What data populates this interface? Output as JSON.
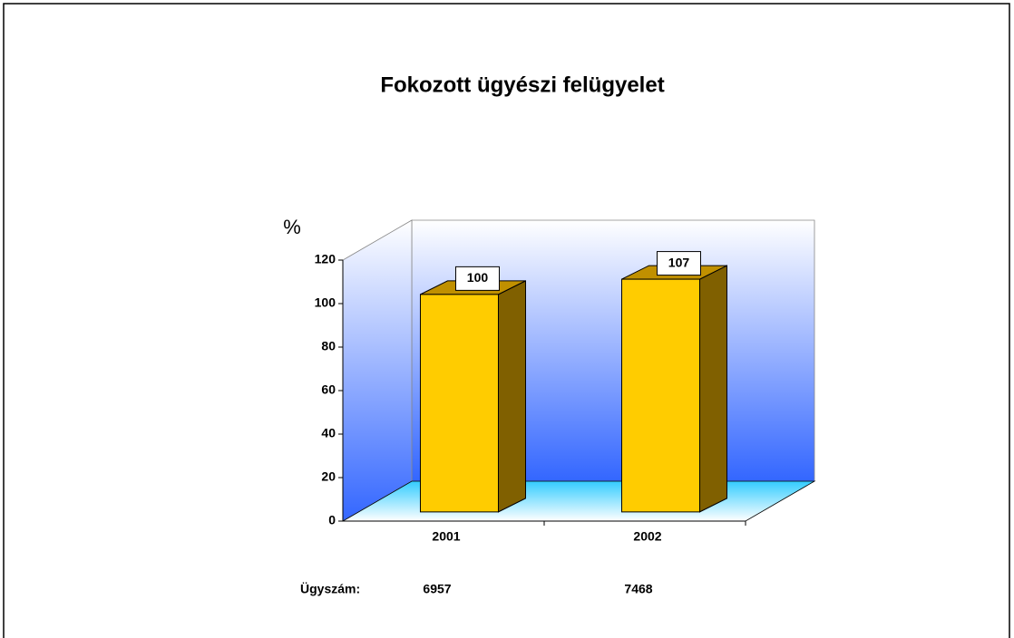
{
  "chart_data": {
    "type": "bar3d",
    "title": "Fokozott ügyészi felügyelet",
    "y_label": "%",
    "categories": [
      "2001",
      "2002"
    ],
    "values": [
      100,
      107
    ],
    "color": "#ffcc00",
    "ylim": [
      0,
      120
    ],
    "yticks": [
      0,
      20,
      40,
      60,
      80,
      100,
      120
    ],
    "case_counts": {
      "label": "Ügyszám:",
      "values": [
        6957,
        7468
      ]
    }
  }
}
